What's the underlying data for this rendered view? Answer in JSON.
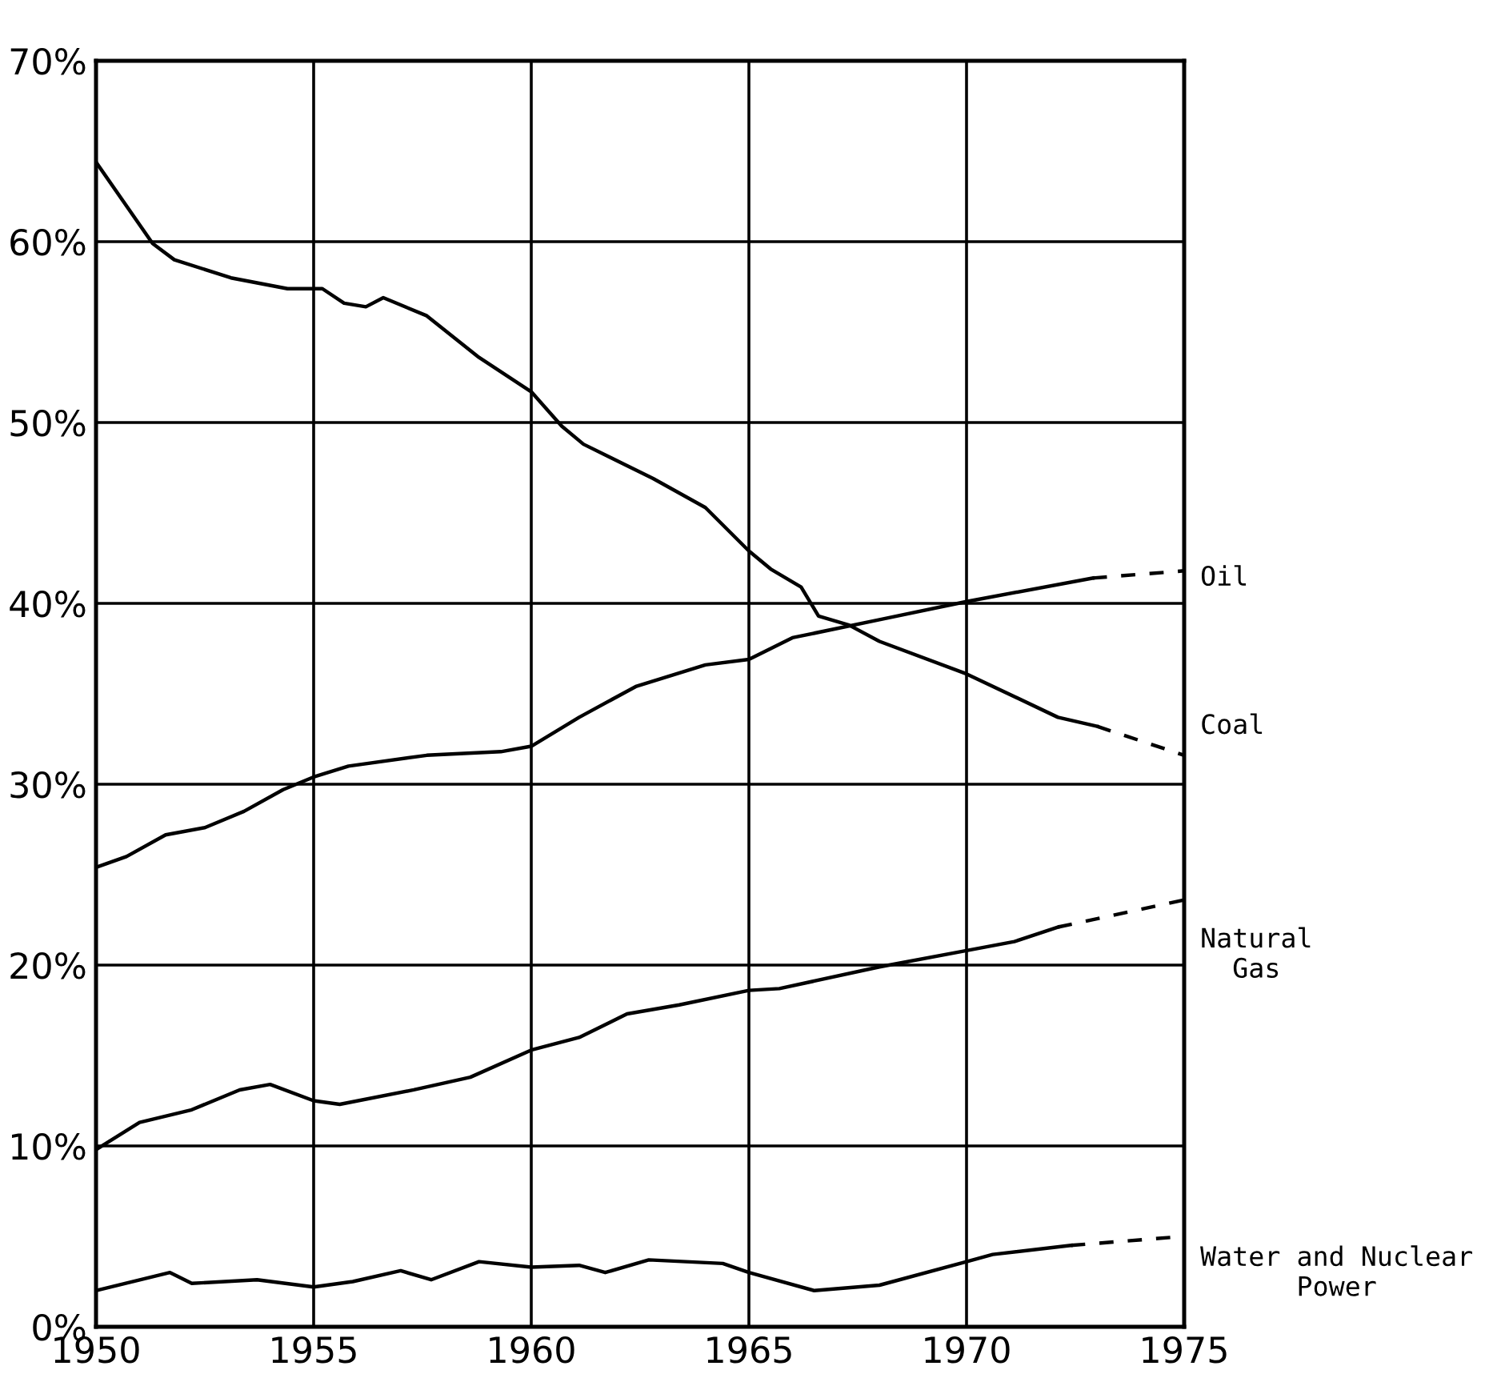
{
  "chart_data": {
    "type": "line",
    "xlim": [
      1950,
      1975
    ],
    "ylim": [
      0,
      70
    ],
    "xticks": [
      1950,
      1955,
      1960,
      1965,
      1970,
      1975
    ],
    "yticks": [
      {
        "value": 0,
        "label": "0%"
      },
      {
        "value": 10,
        "label": "10%"
      },
      {
        "value": 20,
        "label": "20%"
      },
      {
        "value": 30,
        "label": "30%"
      },
      {
        "value": 40,
        "label": "40%"
      },
      {
        "value": 50,
        "label": "50%"
      },
      {
        "value": 60,
        "label": "60%"
      },
      {
        "value": 70,
        "label": "70%"
      }
    ],
    "grid": true,
    "legend": false,
    "line_style": "solid",
    "series": [
      {
        "name": "Coal",
        "color": "#000000",
        "x": [
          1950,
          1951.3,
          1951.8,
          1953.1,
          1954.4,
          1955,
          1955.2,
          1955.7,
          1956.2,
          1956.6,
          1957.6,
          1958.8,
          1960,
          1960.7,
          1961.2,
          1962.8,
          1964,
          1965,
          1965.5,
          1966.2,
          1966.6,
          1967.3,
          1968,
          1970,
          1972.1,
          1973
        ],
        "values": [
          64.4,
          59.9,
          59.0,
          58.0,
          57.4,
          57.4,
          57.4,
          56.6,
          56.4,
          56.9,
          55.9,
          53.6,
          51.7,
          49.8,
          48.8,
          46.9,
          45.3,
          42.9,
          41.9,
          40.9,
          39.3,
          38.8,
          37.9,
          36.1,
          33.7,
          33.2
        ]
      },
      {
        "color": "#000000",
        "line_style": "dashed",
        "x": [
          1973,
          1975
        ],
        "values": [
          33.2,
          31.6
        ]
      },
      {
        "name": "Oil",
        "color": "#000000",
        "x": [
          1950,
          1950.7,
          1951.6,
          1952.5,
          1953.4,
          1954.3,
          1955,
          1955.8,
          1957.6,
          1959.3,
          1960,
          1961.1,
          1962.4,
          1964,
          1965,
          1966,
          1968,
          1970,
          1972.9
        ],
        "values": [
          25.4,
          26.0,
          27.2,
          27.6,
          28.5,
          29.7,
          30.4,
          31.0,
          31.6,
          31.8,
          32.1,
          33.7,
          35.4,
          36.6,
          36.9,
          38.1,
          39.1,
          40.1,
          41.4
        ]
      },
      {
        "color": "#000000",
        "line_style": "dashed",
        "x": [
          1972.9,
          1975
        ],
        "values": [
          41.4,
          41.8
        ]
      },
      {
        "name": "Natural\nGas",
        "color": "#000000",
        "x": [
          1950,
          1951,
          1952.2,
          1953.3,
          1954,
          1955,
          1955.6,
          1957.3,
          1958.6,
          1960,
          1961.1,
          1962.2,
          1963.4,
          1965,
          1965.7,
          1968,
          1970,
          1971.1,
          1972.1
        ],
        "values": [
          9.8,
          11.3,
          12.0,
          13.1,
          13.4,
          12.5,
          12.3,
          13.1,
          13.8,
          15.3,
          16.0,
          17.3,
          17.8,
          18.6,
          18.7,
          19.9,
          20.8,
          21.3,
          22.1
        ]
      },
      {
        "color": "#000000",
        "line_style": "dashed",
        "x": [
          1972.1,
          1975
        ],
        "values": [
          22.1,
          23.6
        ]
      },
      {
        "name": "Water and Nuclear\nPower",
        "color": "#000000",
        "x": [
          1950,
          1951.7,
          1952.2,
          1953.7,
          1955,
          1955.9,
          1957,
          1957.7,
          1958.8,
          1960,
          1961.1,
          1961.7,
          1962.7,
          1964.4,
          1965,
          1966.5,
          1968,
          1970,
          1970.6,
          1972.4
        ],
        "values": [
          2.0,
          3.0,
          2.4,
          2.6,
          2.2,
          2.5,
          3.1,
          2.6,
          3.6,
          3.3,
          3.4,
          3.0,
          3.7,
          3.5,
          3.0,
          2.0,
          2.3,
          3.6,
          4.0,
          4.5
        ]
      },
      {
        "color": "#000000",
        "line_style": "dashed",
        "x": [
          1972.4,
          1975
        ],
        "values": [
          4.5,
          5.0
        ]
      }
    ]
  }
}
